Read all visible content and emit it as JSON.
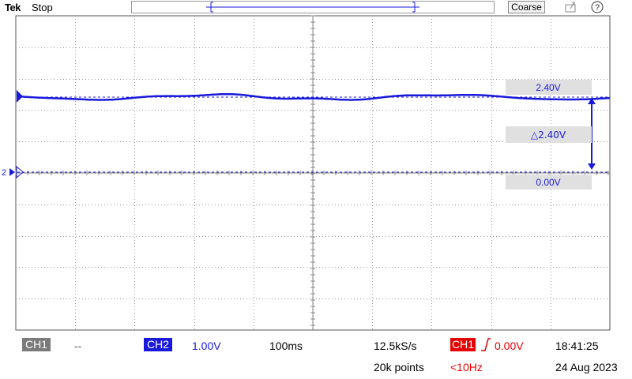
{
  "top_bar": {
    "brand": "Tek",
    "acq_state": "Stop",
    "coarse_label": "Coarse",
    "icons": [
      "save-icon",
      "help-icon"
    ]
  },
  "waveform": {
    "cursor_a_label": "2.40V",
    "cursor_delta_label": "△2.40V",
    "cursor_b_label": "0.00V",
    "ch2_marker": "2",
    "colors": {
      "ch2": "#1a1adc",
      "grid": "#9a9a9a",
      "trigger": "#e60000"
    }
  },
  "readout": {
    "ch1_label": "CH1",
    "ch1_value": "--",
    "ch2_label": "CH2",
    "ch2_scale": "1.00V",
    "timebase": "100ms",
    "sample_rate": "12.5kS/s",
    "record_length": "20k points",
    "trigger_source": "CH1",
    "trigger_level": "0.00V",
    "trigger_freq": "<10Hz",
    "time": "18:41:25",
    "date": "24 Aug 2023"
  }
}
